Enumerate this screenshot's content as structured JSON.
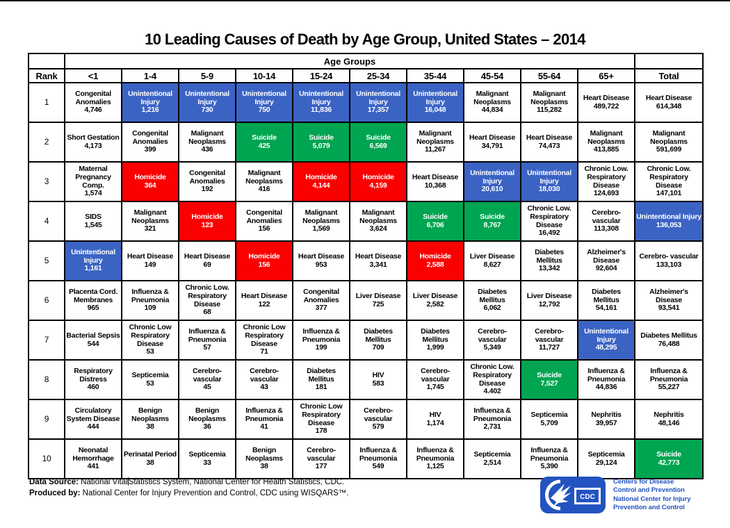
{
  "chart_data": {
    "type": "table",
    "title": "10 Leading Causes of Death by Age Group, United States – 2014",
    "group_header": "Age Groups",
    "columns": [
      "Rank",
      "<1",
      "1-4",
      "5-9",
      "10-14",
      "15-24",
      "25-34",
      "35-44",
      "45-54",
      "55-64",
      "65+",
      "Total"
    ],
    "palette": {
      "white": "#FFFFFF",
      "blue": "#3B63C4",
      "green": "#00A551",
      "red": "#FB0000"
    },
    "rows": [
      {
        "rank": "1",
        "cells": [
          [
            "Congenital Anomalies",
            "4,746",
            "white"
          ],
          [
            "Unintentional Injury",
            "1,216",
            "blue"
          ],
          [
            "Unintentional Injury",
            "730",
            "blue"
          ],
          [
            "Unintentional Injury",
            "750",
            "blue"
          ],
          [
            "Unintentional Injury",
            "11,836",
            "blue"
          ],
          [
            "Unintentional Injury",
            "17,357",
            "blue"
          ],
          [
            "Unintentional Injury",
            "16,048",
            "blue"
          ],
          [
            "Malignant Neoplasms",
            "44,834",
            "white"
          ],
          [
            "Malignant Neoplasms",
            "115,282",
            "white"
          ],
          [
            "Heart Disease",
            "489,722",
            "white"
          ],
          [
            "Heart Disease",
            "614,348",
            "white"
          ]
        ]
      },
      {
        "rank": "2",
        "cells": [
          [
            "Short Gestation",
            "4,173",
            "white"
          ],
          [
            "Congenital Anomalies",
            "399",
            "white"
          ],
          [
            "Malignant Neoplasms",
            "436",
            "white"
          ],
          [
            "Suicide",
            "425",
            "green"
          ],
          [
            "Suicide",
            "5,079",
            "green"
          ],
          [
            "Suicide",
            "6,569",
            "green"
          ],
          [
            "Malignant Neoplasms",
            "11,267",
            "white"
          ],
          [
            "Heart Disease",
            "34,791",
            "white"
          ],
          [
            "Heart Disease",
            "74,473",
            "white"
          ],
          [
            "Malignant Neoplasms",
            "413,885",
            "white"
          ],
          [
            "Malignant Neoplasms",
            "591,699",
            "white"
          ]
        ]
      },
      {
        "rank": "3",
        "cells": [
          [
            "Maternal Pregnancy Comp.",
            "1,574",
            "white"
          ],
          [
            "Homicide",
            "364",
            "red"
          ],
          [
            "Congenital Anomalies",
            "192",
            "white"
          ],
          [
            "Malignant Neoplasms",
            "416",
            "white"
          ],
          [
            "Homicide",
            "4,144",
            "red"
          ],
          [
            "Homicide",
            "4,159",
            "red"
          ],
          [
            "Heart Disease",
            "10,368",
            "white"
          ],
          [
            "Unintentional Injury",
            "20,610",
            "blue"
          ],
          [
            "Unintentional Injury",
            "18,030",
            "blue"
          ],
          [
            "Chronic Low. Respiratory Disease",
            "124,693",
            "white"
          ],
          [
            "Chronic Low. Respiratory Disease",
            "147,101",
            "white"
          ]
        ]
      },
      {
        "rank": "4",
        "cells": [
          [
            "SIDS",
            "1,545",
            "white"
          ],
          [
            "Malignant Neoplasms",
            "321",
            "white"
          ],
          [
            "Homicide",
            "123",
            "red"
          ],
          [
            "Congenital Anomalies",
            "156",
            "white"
          ],
          [
            "Malignant Neoplasms",
            "1,569",
            "white"
          ],
          [
            "Malignant Neoplasms",
            "3,624",
            "white"
          ],
          [
            "Suicide",
            "6,706",
            "green"
          ],
          [
            "Suicide",
            "8,767",
            "green"
          ],
          [
            "Chronic Low. Respiratory Disease",
            "16,492",
            "white"
          ],
          [
            "Cerebro- vascular",
            "113,308",
            "white"
          ],
          [
            "Unintentional Injury",
            "136,053",
            "blue"
          ]
        ]
      },
      {
        "rank": "5",
        "cells": [
          [
            "Unintentional Injury",
            "1,161",
            "blue"
          ],
          [
            "Heart Disease",
            "149",
            "white"
          ],
          [
            "Heart Disease",
            "69",
            "white"
          ],
          [
            "Homicide",
            "156",
            "red"
          ],
          [
            "Heart Disease",
            "953",
            "white"
          ],
          [
            "Heart Disease",
            "3,341",
            "white"
          ],
          [
            "Homicide",
            "2,588",
            "red"
          ],
          [
            "Liver Disease",
            "8,627",
            "white"
          ],
          [
            "Diabetes Mellitus",
            "13,342",
            "white"
          ],
          [
            "Alzheimer's Disease",
            "92,604",
            "white"
          ],
          [
            "Cerebro- vascular",
            "133,103",
            "white"
          ]
        ]
      },
      {
        "rank": "6",
        "cells": [
          [
            "Placenta Cord. Membranes",
            "965",
            "white"
          ],
          [
            "Influenza & Pneumonia",
            "109",
            "white"
          ],
          [
            "Chronic Low. Respiratory Disease",
            "68",
            "white"
          ],
          [
            "Heart Disease",
            "122",
            "white"
          ],
          [
            "Congenital Anomalies",
            "377",
            "white"
          ],
          [
            "Liver Disease",
            "725",
            "white"
          ],
          [
            "Liver Disease",
            "2,582",
            "white"
          ],
          [
            "Diabetes Mellitus",
            "6,062",
            "white"
          ],
          [
            "Liver Disease",
            "12,792",
            "white"
          ],
          [
            "Diabetes Mellitus",
            "54,161",
            "white"
          ],
          [
            "Alzheimer's Disease",
            "93,541",
            "white"
          ]
        ]
      },
      {
        "rank": "7",
        "cells": [
          [
            "Bacterial Sepsis",
            "544",
            "white"
          ],
          [
            "Chronic Low Respiratory Disease",
            "53",
            "white"
          ],
          [
            "Influenza & Pneumonia",
            "57",
            "white"
          ],
          [
            "Chronic Low Respiratory Disease",
            "71",
            "white"
          ],
          [
            "Influenza & Pneumonia",
            "199",
            "white"
          ],
          [
            "Diabetes Mellitus",
            "709",
            "white"
          ],
          [
            "Diabetes Mellitus",
            "1,999",
            "white"
          ],
          [
            "Cerebro- vascular",
            "5,349",
            "white"
          ],
          [
            "Cerebro- vascular",
            "11,727",
            "white"
          ],
          [
            "Unintentional Injury",
            "48,295",
            "blue"
          ],
          [
            "Diabetes Mellitus",
            "76,488",
            "white"
          ]
        ]
      },
      {
        "rank": "8",
        "cells": [
          [
            "Respiratory Distress",
            "460",
            "white"
          ],
          [
            "Septicemia",
            "53",
            "white"
          ],
          [
            "Cerebro- vascular",
            "45",
            "white"
          ],
          [
            "Cerebro- vascular",
            "43",
            "white"
          ],
          [
            "Diabetes Mellitus",
            "181",
            "white"
          ],
          [
            "HIV",
            "583",
            "white"
          ],
          [
            "Cerebro- vascular",
            "1,745",
            "white"
          ],
          [
            "Chronic Low. Respiratory Disease",
            "4.402",
            "white"
          ],
          [
            "Suicide",
            "7,527",
            "green"
          ],
          [
            "Influenza & Pneumonia",
            "44,836",
            "white"
          ],
          [
            "Influenza & Pneumonia",
            "55,227",
            "white"
          ]
        ]
      },
      {
        "rank": "9",
        "cells": [
          [
            "Circulatory System Disease",
            "444",
            "white"
          ],
          [
            "Benign Neoplasms",
            "38",
            "white"
          ],
          [
            "Benign Neoplasms",
            "36",
            "white"
          ],
          [
            "Influenza & Pneumonia",
            "41",
            "white"
          ],
          [
            "Chronic Low Respiratory Disease",
            "178",
            "white"
          ],
          [
            "Cerebro- vascular",
            "579",
            "white"
          ],
          [
            "HIV",
            "1,174",
            "white"
          ],
          [
            "Influenza & Pneumonia",
            "2,731",
            "white"
          ],
          [
            "Septicemia",
            "5,709",
            "white"
          ],
          [
            "Nephritis",
            "39,957",
            "white"
          ],
          [
            "Nephritis",
            "48,146",
            "white"
          ]
        ]
      },
      {
        "rank": "10",
        "cells": [
          [
            "Neonatal Hemorrhage",
            "441",
            "white"
          ],
          [
            "Perinatal Period",
            "38",
            "white"
          ],
          [
            "Septicemia",
            "33",
            "white"
          ],
          [
            "Benign Neoplasms",
            "38",
            "white"
          ],
          [
            "Cerebro- vascular",
            "177",
            "white"
          ],
          [
            "Influenza & Pneumonia",
            "549",
            "white"
          ],
          [
            "Influenza & Pneumonia",
            "1,125",
            "white"
          ],
          [
            "Septicemia",
            "2,514",
            "white"
          ],
          [
            "Influenza & Pneumonia",
            "5,390",
            "white"
          ],
          [
            "Septicemia",
            "29,124",
            "white"
          ],
          [
            "Suicide",
            "42,773",
            "green"
          ]
        ]
      }
    ]
  },
  "footer": {
    "data_source_label": "Data Source:",
    "data_source_before_cursor": " National Vital",
    "data_source_after_cursor": "Statistics System, National Center for Health Statistics, CDC.",
    "produced_by_label": "Produced by:",
    "produced_by_text": " National Center for Injury Prevention and Control, CDC using WISQARS™.",
    "logo": {
      "brand_color": "#2253C0",
      "badge_text": "CDC",
      "lines": [
        "Centers for Disease",
        "Control and Prevention",
        "National Center for Injury",
        "Prevention and Control"
      ]
    }
  }
}
